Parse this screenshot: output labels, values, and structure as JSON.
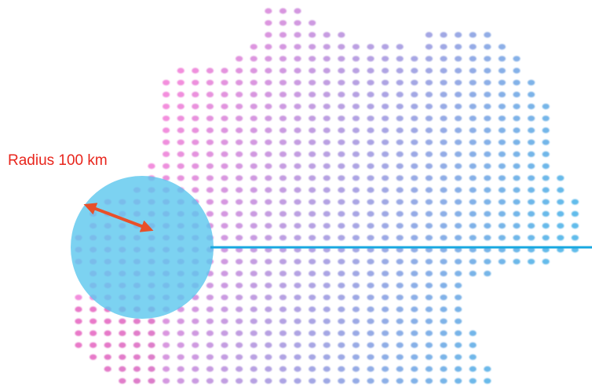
{
  "map": {
    "radius_label": "Radius 100 km",
    "colors": {
      "label_text": "#e8251c",
      "dot_pink": "#ef6fd3",
      "dot_blue": "#34a9e5",
      "dot_magenta": "#d63aa0",
      "circle_fill": "#5bc7ee",
      "radius_arrow": "#e8502a",
      "line": "#18a8e0"
    },
    "icons": [
      "double-headed-arrow-icon"
    ]
  }
}
